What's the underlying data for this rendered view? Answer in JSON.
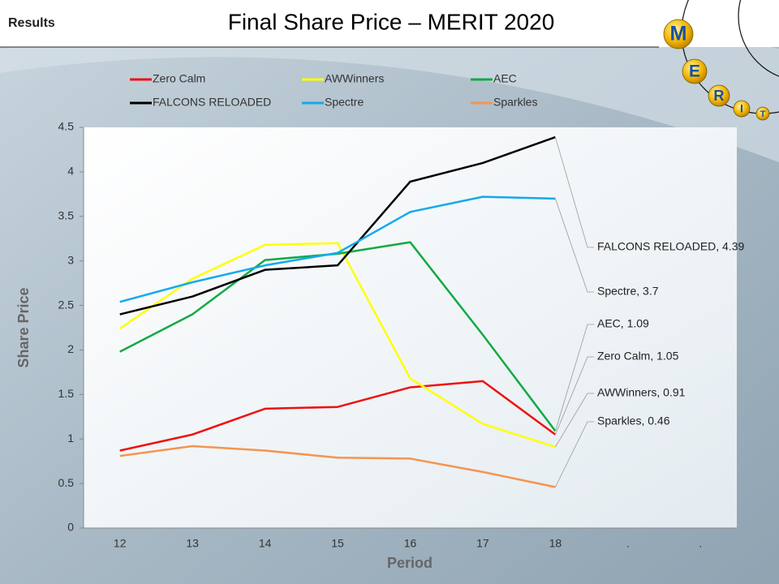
{
  "header": {
    "section": "Results",
    "logo": [
      "M",
      "E",
      "R",
      "I",
      "T"
    ]
  },
  "chart_data": {
    "type": "line",
    "title": "Final Share Price – MERIT 2020",
    "x_label": "Period",
    "y_label": "Share Price",
    "categories": [
      "12",
      "13",
      "14",
      "15",
      "16",
      "17",
      "18",
      ".",
      "."
    ],
    "ylim": [
      0,
      4.5
    ],
    "yticks": [
      0,
      0.5,
      1,
      1.5,
      2,
      2.5,
      3,
      3.5,
      4,
      4.5
    ],
    "series": [
      {
        "name": "Zero Calm",
        "color": "#ee1111",
        "values": [
          0.87,
          1.05,
          1.34,
          1.36,
          1.58,
          1.65,
          1.05,
          null,
          null
        ],
        "value_labels": [
          null,
          null,
          null,
          null,
          null,
          null,
          "Zero Calm, 1.05",
          null,
          null
        ]
      },
      {
        "name": "AWWinners",
        "color": "#ffff00",
        "values": [
          2.24,
          2.8,
          3.18,
          3.2,
          1.68,
          1.17,
          0.91,
          null,
          null
        ],
        "value_labels": [
          null,
          null,
          null,
          null,
          null,
          null,
          "AWWinners, 0.91",
          null,
          null
        ]
      },
      {
        "name": "AEC",
        "color": "#11aa44",
        "values": [
          1.98,
          2.4,
          3.01,
          3.08,
          3.21,
          2.17,
          1.09,
          null,
          null
        ],
        "value_labels": [
          null,
          null,
          null,
          null,
          null,
          null,
          "AEC, 1.09",
          null,
          null
        ]
      },
      {
        "name": "FALCONS RELOADED",
        "color": "#000000",
        "values": [
          2.4,
          2.6,
          2.9,
          2.95,
          3.89,
          4.1,
          4.39,
          null,
          null
        ],
        "value_labels": [
          null,
          null,
          null,
          null,
          null,
          null,
          "FALCONS RELOADED, 4.39",
          null,
          null
        ]
      },
      {
        "name": "Spectre",
        "color": "#11aaee",
        "values": [
          2.54,
          2.76,
          2.95,
          3.09,
          3.55,
          3.72,
          3.7,
          null,
          null
        ],
        "value_labels": [
          null,
          null,
          null,
          null,
          null,
          null,
          "Spectre, 3.7",
          null,
          null
        ]
      },
      {
        "name": "Sparkles",
        "color": "#f59450",
        "values": [
          0.81,
          0.92,
          0.87,
          0.79,
          0.78,
          0.63,
          0.46,
          null,
          null
        ],
        "value_labels": [
          null,
          null,
          null,
          null,
          null,
          null,
          "Sparkles, 0.46",
          null,
          null
        ]
      }
    ]
  }
}
